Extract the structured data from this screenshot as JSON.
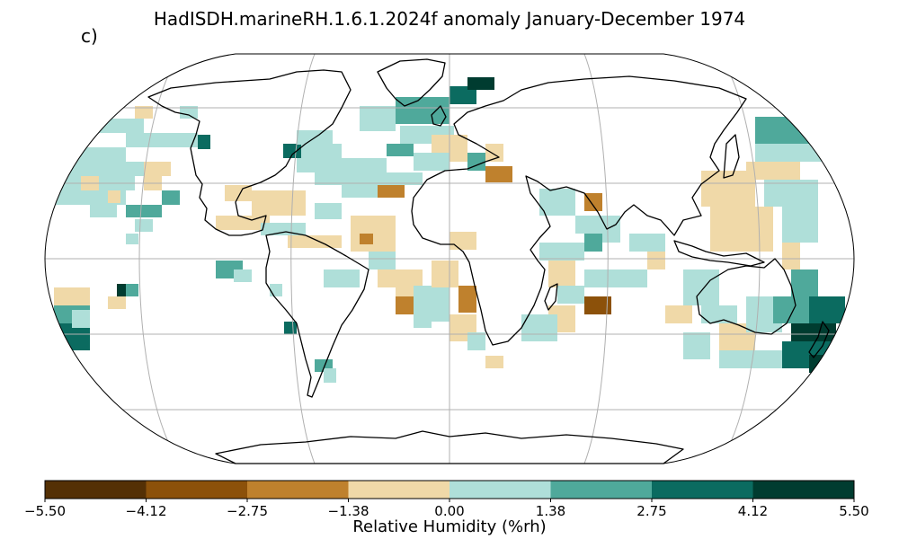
{
  "title": "HadISDH.marineRH.1.6.1.2024f anomaly January-December 1974",
  "panel_label": "c)",
  "projection": "Robinson",
  "gridlines": true,
  "colorbar": {
    "label": "Relative Humidity (%rh)",
    "orientation": "horizontal",
    "placement": "bottom",
    "ticks": [
      "−5.50",
      "−4.12",
      "−2.75",
      "−1.38",
      "0.00",
      "1.38",
      "2.75",
      "4.12",
      "5.50"
    ],
    "colors": [
      "#543005",
      "#8c510a",
      "#bf812d",
      "#f0d9a8",
      "#afdfd9",
      "#4fa99b",
      "#0b6b60",
      "#003c30"
    ]
  },
  "map_colors": {
    "land_outline": "#000000",
    "graticule": "#b0b0b0",
    "ocean_missing": "#ffffff"
  }
}
